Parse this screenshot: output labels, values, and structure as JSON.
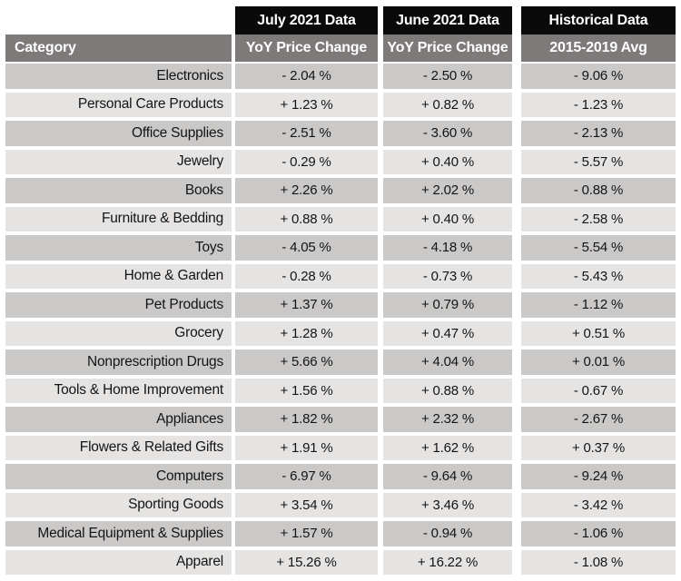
{
  "colors": {
    "background": "#ffffff",
    "header_black": "#0a0a0a",
    "header_gray": "#7e7a79",
    "row_dark": "#cbc9c8",
    "row_light": "#e6e4e3",
    "header_text": "#ffffff",
    "data_text": "#141414"
  },
  "chart_data": {
    "type": "table",
    "category_header": "Category",
    "column_groups": [
      {
        "top": "July 2021 Data",
        "sub": "YoY Price Change"
      },
      {
        "top": "June 2021 Data",
        "sub": "YoY Price Change"
      },
      {
        "top": "Historical Data",
        "sub": "2015-2019 Avg"
      }
    ],
    "rows": [
      {
        "category": "Electronics",
        "july_2021": "- 2.04 %",
        "june_2021": "- 2.50 %",
        "historical": "- 9.06 %"
      },
      {
        "category": "Personal Care Products",
        "july_2021": "+ 1.23 %",
        "june_2021": "+ 0.82 %",
        "historical": "- 1.23 %"
      },
      {
        "category": "Office Supplies",
        "july_2021": "- 2.51 %",
        "june_2021": "- 3.60 %",
        "historical": "- 2.13 %"
      },
      {
        "category": "Jewelry",
        "july_2021": "- 0.29 %",
        "june_2021": "+ 0.40 %",
        "historical": "- 5.57 %"
      },
      {
        "category": "Books",
        "july_2021": "+ 2.26 %",
        "june_2021": "+ 2.02 %",
        "historical": "- 0.88 %"
      },
      {
        "category": "Furniture & Bedding",
        "july_2021": "+ 0.88 %",
        "june_2021": "+ 0.40 %",
        "historical": "- 2.58 %"
      },
      {
        "category": "Toys",
        "july_2021": "- 4.05 %",
        "june_2021": "- 4.18 %",
        "historical": "- 5.54 %"
      },
      {
        "category": "Home & Garden",
        "july_2021": "- 0.28 %",
        "june_2021": "- 0.73 %",
        "historical": "- 5.43 %"
      },
      {
        "category": "Pet Products",
        "july_2021": "+ 1.37 %",
        "june_2021": "+ 0.79 %",
        "historical": "- 1.12 %"
      },
      {
        "category": "Grocery",
        "july_2021": "+ 1.28 %",
        "june_2021": "+ 0.47 %",
        "historical": "+ 0.51 %"
      },
      {
        "category": "Nonprescription Drugs",
        "july_2021": "+ 5.66 %",
        "june_2021": "+ 4.04 %",
        "historical": "+ 0.01 %"
      },
      {
        "category": "Tools & Home Improvement",
        "july_2021": "+ 1.56 %",
        "june_2021": "+ 0.88 %",
        "historical": "- 0.67 %"
      },
      {
        "category": "Appliances",
        "july_2021": "+ 1.82 %",
        "june_2021": "+ 2.32 %",
        "historical": "- 2.67 %"
      },
      {
        "category": "Flowers & Related Gifts",
        "july_2021": "+ 1.91 %",
        "june_2021": "+ 1.62 %",
        "historical": "+ 0.37 %"
      },
      {
        "category": "Computers",
        "july_2021": "- 6.97 %",
        "june_2021": "- 9.64 %",
        "historical": "- 9.24 %"
      },
      {
        "category": "Sporting Goods",
        "july_2021": "+ 3.54 %",
        "june_2021": "+ 3.46 %",
        "historical": "- 3.42 %"
      },
      {
        "category": "Medical Equipment & Supplies",
        "july_2021": "+ 1.57 %",
        "june_2021": "- 0.94 %",
        "historical": "- 1.06 %"
      },
      {
        "category": "Apparel",
        "july_2021": "+ 15.26 %",
        "june_2021": "+ 16.22 %",
        "historical": "- 1.08 %"
      }
    ]
  }
}
